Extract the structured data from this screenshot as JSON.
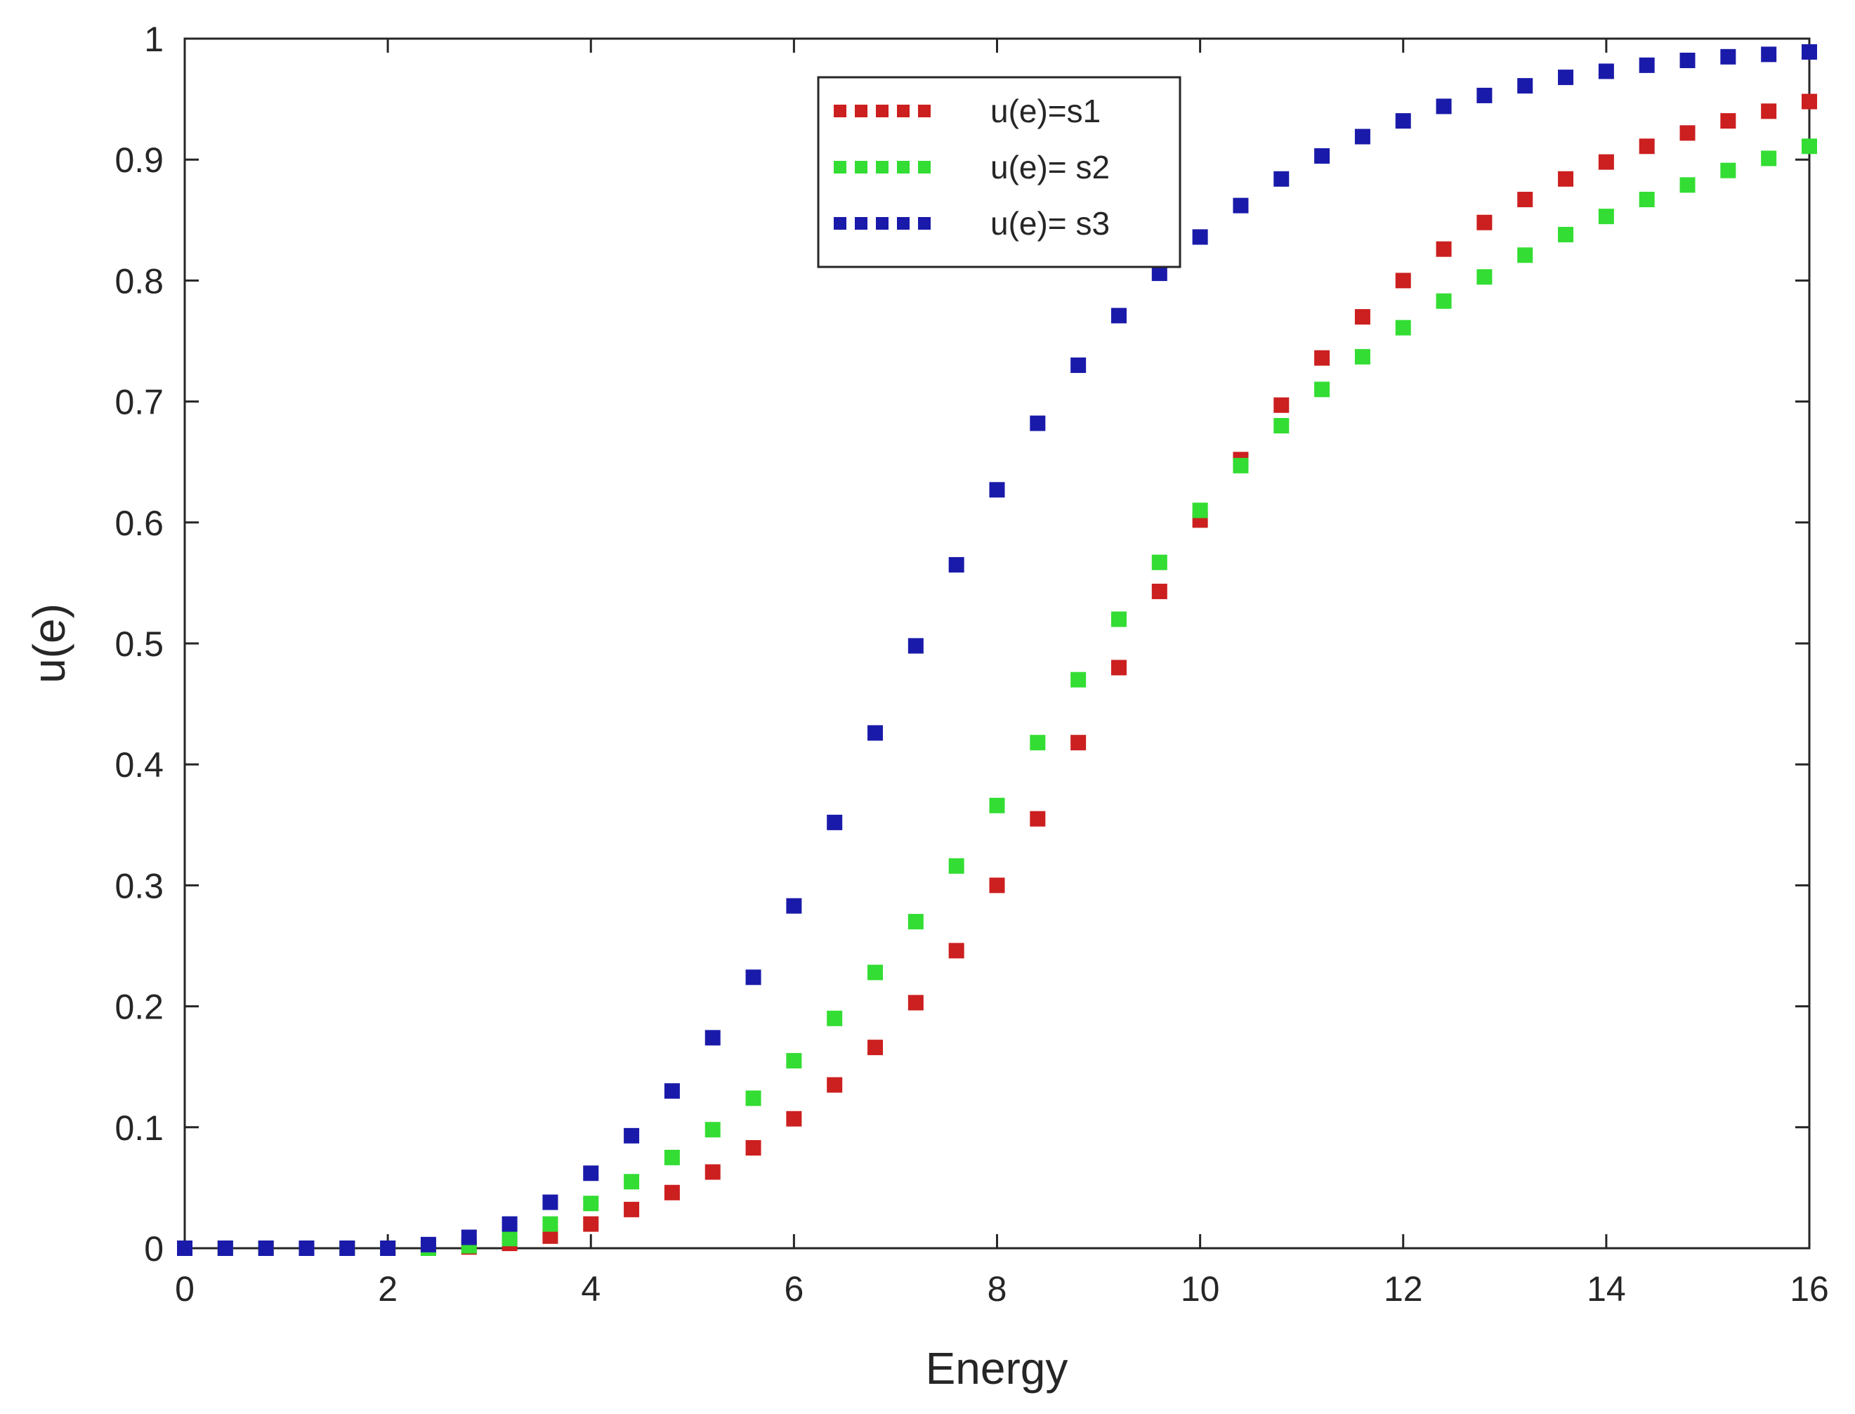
{
  "chart_data": {
    "type": "line",
    "title": "",
    "xlabel": "Energy",
    "ylabel": "u(e)",
    "xlim": [
      0,
      16
    ],
    "ylim": [
      0,
      1
    ],
    "grid": false,
    "legend_position": "top-center",
    "x_ticks": [
      "0",
      "2",
      "4",
      "6",
      "8",
      "10",
      "12",
      "14",
      "16"
    ],
    "y_ticks": [
      "0",
      "0.1",
      "0.2",
      "0.3",
      "0.4",
      "0.5",
      "0.6",
      "0.7",
      "0.8",
      "0.9",
      "1"
    ],
    "x": [
      0,
      0.4,
      0.8,
      1.2,
      1.6,
      2.0,
      2.4,
      2.8,
      3.2,
      3.6,
      4.0,
      4.4,
      4.8,
      5.2,
      5.6,
      6.0,
      6.4,
      6.8,
      7.2,
      7.6,
      8.0,
      8.4,
      8.8,
      9.2,
      9.6,
      10.0,
      10.4,
      10.8,
      11.2,
      11.6,
      12.0,
      12.4,
      12.8,
      13.2,
      13.6,
      14.0,
      14.4,
      14.8,
      15.2,
      15.6,
      16.0
    ],
    "series": [
      {
        "name": "u(e)=s1",
        "color": "#cc1f1f",
        "values": [
          0,
          0,
          0,
          0,
          0,
          0,
          0,
          0.001,
          0.004,
          0.01,
          0.02,
          0.032,
          0.046,
          0.063,
          0.083,
          0.107,
          0.135,
          0.166,
          0.203,
          0.246,
          0.3,
          0.355,
          0.418,
          0.48,
          0.543,
          0.602,
          0.652,
          0.697,
          0.736,
          0.77,
          0.8,
          0.826,
          0.848,
          0.867,
          0.884,
          0.898,
          0.911,
          0.922,
          0.932,
          0.94,
          0.948
        ]
      },
      {
        "name": "u(e)= s2",
        "color": "#33dd33",
        "values": [
          0,
          0,
          0,
          0,
          0,
          0,
          0,
          0.002,
          0.008,
          0.02,
          0.037,
          0.055,
          0.075,
          0.098,
          0.124,
          0.155,
          0.19,
          0.228,
          0.27,
          0.316,
          0.366,
          0.418,
          0.47,
          0.52,
          0.567,
          0.61,
          0.647,
          0.68,
          0.71,
          0.737,
          0.761,
          0.783,
          0.803,
          0.821,
          0.838,
          0.853,
          0.867,
          0.879,
          0.891,
          0.901,
          0.911
        ]
      },
      {
        "name": "u(e)= s3",
        "color": "#1a1aaa",
        "values": [
          0,
          0,
          0,
          0,
          0,
          0,
          0.003,
          0.009,
          0.02,
          0.038,
          0.062,
          0.093,
          0.13,
          0.174,
          0.224,
          0.283,
          0.352,
          0.426,
          0.498,
          0.565,
          0.627,
          0.682,
          0.73,
          0.771,
          0.806,
          0.836,
          0.862,
          0.884,
          0.903,
          0.919,
          0.932,
          0.944,
          0.953,
          0.961,
          0.968,
          0.973,
          0.978,
          0.982,
          0.985,
          0.987,
          0.989
        ]
      }
    ]
  }
}
